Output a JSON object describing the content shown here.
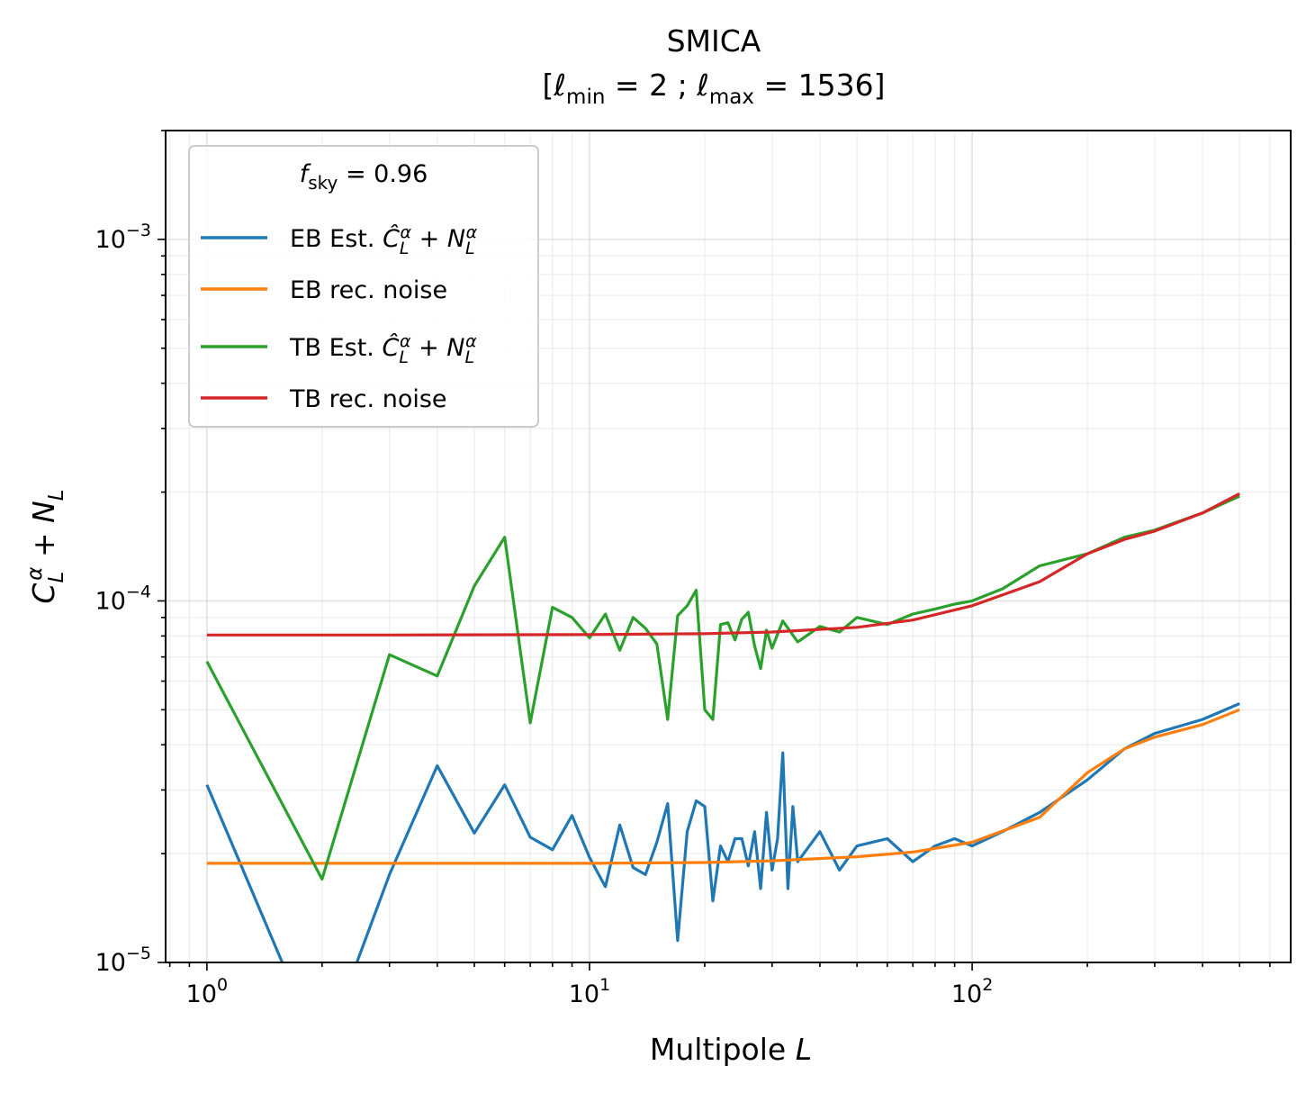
{
  "chart_data": {
    "type": "line",
    "title_main": "SMICA",
    "title_sub": {
      "prefix": "[",
      "ell_min_sub": "min",
      "ell_min_val": "2",
      "sep": ";",
      "ell_max_sub": "max",
      "ell_max_val": "1536",
      "suffix": "]"
    },
    "xlabel": "Multipole L",
    "ylabel": "C_L^α + N_L",
    "x_scale": "log",
    "y_scale": "log",
    "xlim": [
      0.78,
      680
    ],
    "ylim": [
      1e-05,
      0.002
    ],
    "x_ticks": [
      {
        "value": 1,
        "label": "10",
        "exp": "0"
      },
      {
        "value": 10,
        "label": "10",
        "exp": "1"
      },
      {
        "value": 100,
        "label": "10",
        "exp": "2"
      }
    ],
    "y_ticks": [
      {
        "value": 1e-05,
        "label": "10",
        "exp": "−5"
      },
      {
        "value": 0.0001,
        "label": "10",
        "exp": "−4"
      },
      {
        "value": 0.001,
        "label": "10",
        "exp": "−3"
      }
    ],
    "grid": true,
    "legend": {
      "position": "top-left",
      "title": "f_sky = 0.96"
    },
    "colors": {
      "eb_est": "#1f77b4",
      "eb_noise": "#ff7f0e",
      "tb_est": "#2ca02c",
      "tb_noise": "#d62728"
    },
    "series": [
      {
        "key": "eb_est",
        "name": "EB Est. Ĉ_L^α + N_L^α",
        "name_prefix": "EB Est.",
        "x": [
          1,
          2,
          3,
          4,
          5,
          6,
          7,
          8,
          9,
          10,
          11,
          12,
          13,
          14,
          15,
          16,
          17,
          18,
          19,
          20,
          21,
          22,
          23,
          24,
          25,
          26,
          27,
          28,
          29,
          30,
          31,
          32,
          33,
          34,
          35,
          40,
          45,
          50,
          60,
          70,
          80,
          90,
          100,
          120,
          150,
          200,
          250,
          300,
          400,
          500
        ],
        "y": [
          3.1e-05,
          5.5e-06,
          1.75e-05,
          3.5e-05,
          2.28e-05,
          3.1e-05,
          2.22e-05,
          2.05e-05,
          2.55e-05,
          1.95e-05,
          1.62e-05,
          2.4e-05,
          1.83e-05,
          1.75e-05,
          2.15e-05,
          2.75e-05,
          1.15e-05,
          2.3e-05,
          2.8e-05,
          2.7e-05,
          1.48e-05,
          2.1e-05,
          1.9e-05,
          2.2e-05,
          2.2e-05,
          1.85e-05,
          2.3e-05,
          1.6e-05,
          2.6e-05,
          1.8e-05,
          2.2e-05,
          3.8e-05,
          1.6e-05,
          2.7e-05,
          1.9e-05,
          2.3e-05,
          1.8e-05,
          2.1e-05,
          2.2e-05,
          1.9e-05,
          2.1e-05,
          2.2e-05,
          2.1e-05,
          2.3e-05,
          2.6e-05,
          3.2e-05,
          3.9e-05,
          4.3e-05,
          4.7e-05,
          5.2e-05
        ]
      },
      {
        "key": "eb_noise",
        "name": "EB rec. noise",
        "name_prefix": "EB rec. noise",
        "x": [
          1,
          3,
          10,
          20,
          30,
          50,
          70,
          100,
          150,
          200,
          250,
          300,
          400,
          500
        ],
        "y": [
          1.88e-05,
          1.88e-05,
          1.88e-05,
          1.89e-05,
          1.91e-05,
          1.96e-05,
          2.02e-05,
          2.15e-05,
          2.52e-05,
          3.35e-05,
          3.9e-05,
          4.2e-05,
          4.55e-05,
          5e-05
        ]
      },
      {
        "key": "tb_est",
        "name": "TB Est. Ĉ_L^α + N_L^α",
        "name_prefix": "TB Est.",
        "x": [
          1,
          2,
          3,
          4,
          5,
          6,
          7,
          8,
          9,
          10,
          11,
          12,
          13,
          14,
          15,
          16,
          17,
          18,
          19,
          20,
          21,
          22,
          23,
          24,
          25,
          26,
          27,
          28,
          29,
          30,
          32,
          35,
          40,
          45,
          50,
          60,
          70,
          80,
          90,
          100,
          120,
          150,
          200,
          250,
          300,
          400,
          500
        ],
        "y": [
          6.8e-05,
          1.7e-05,
          7.1e-05,
          6.2e-05,
          0.00011,
          0.00015,
          4.6e-05,
          9.6e-05,
          9e-05,
          7.9e-05,
          9.2e-05,
          7.3e-05,
          9e-05,
          8.4e-05,
          7.6e-05,
          4.7e-05,
          9.1e-05,
          9.7e-05,
          0.000107,
          5e-05,
          4.7e-05,
          8.6e-05,
          8.7e-05,
          7.8e-05,
          8.9e-05,
          9.3e-05,
          7.5e-05,
          6.5e-05,
          8.3e-05,
          7.4e-05,
          8.8e-05,
          7.7e-05,
          8.5e-05,
          8.2e-05,
          9e-05,
          8.6e-05,
          9.2e-05,
          9.5e-05,
          9.8e-05,
          0.0001,
          0.000108,
          0.000125,
          0.000135,
          0.00015,
          0.000157,
          0.000175,
          0.000195
        ]
      },
      {
        "key": "tb_noise",
        "name": "TB rec. noise",
        "name_prefix": "TB rec. noise",
        "x": [
          1,
          3,
          10,
          20,
          30,
          50,
          70,
          100,
          150,
          200,
          250,
          300,
          400,
          500
        ],
        "y": [
          8.05e-05,
          8.05e-05,
          8.07e-05,
          8.12e-05,
          8.2e-05,
          8.45e-05,
          8.85e-05,
          9.7e-05,
          0.000113,
          0.000135,
          0.000148,
          0.000156,
          0.000175,
          0.000198
        ]
      }
    ]
  }
}
